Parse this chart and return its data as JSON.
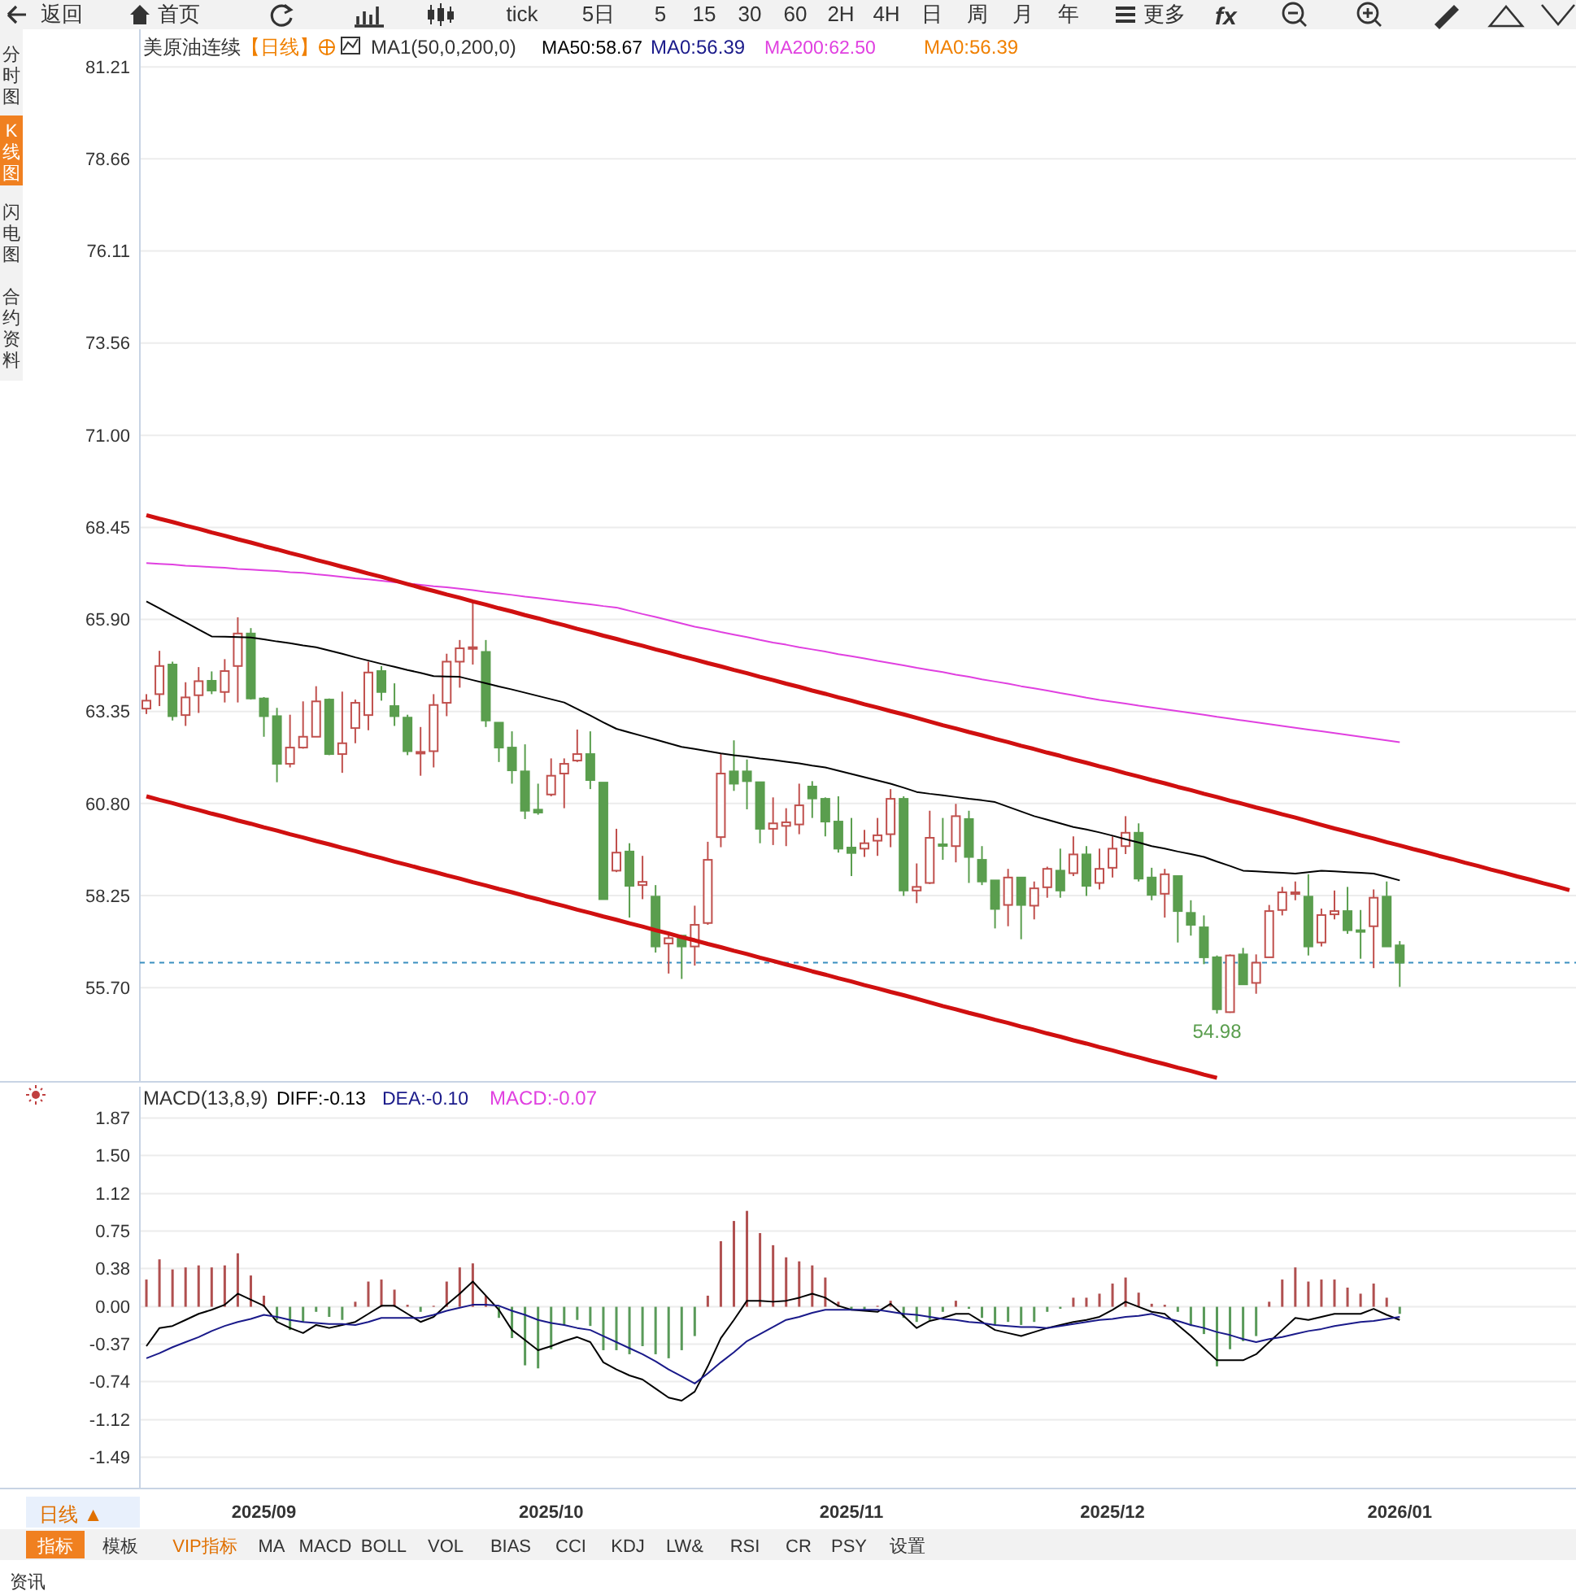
{
  "chart_data": [
    {
      "type": "candlestick",
      "title": "美原油连续",
      "subtitle": "【日线】",
      "annotations": [
        "返回",
        "首页",
        "tick",
        "5日",
        "5",
        "15",
        "30",
        "60",
        "2H",
        "4H",
        "日",
        "周",
        "月",
        "年",
        "更多",
        "分时图",
        "K线图",
        "闪电图",
        "合约资料",
        "MA1(50,0,200,0)",
        "MA0:56.39",
        "MA0:56.39",
        {
          "text": "54.98",
          "y": 54.98
        },
        "fx"
      ],
      "categories": [
        null,
        null,
        null,
        null,
        null,
        null,
        null,
        null,
        null,
        "2025/09",
        null,
        null,
        null,
        null,
        null,
        null,
        null,
        null,
        null,
        null,
        null,
        null,
        null,
        null,
        null,
        null,
        null,
        null,
        null,
        null,
        null,
        "2025/10",
        null,
        null,
        null,
        null,
        null,
        null,
        null,
        null,
        null,
        null,
        null,
        null,
        null,
        null,
        null,
        null,
        null,
        null,
        null,
        null,
        null,
        null,
        "2025/11",
        null,
        null,
        null,
        null,
        null,
        null,
        null,
        null,
        null,
        null,
        null,
        null,
        null,
        null,
        null,
        null,
        null,
        null,
        null,
        "2025/12",
        null,
        null,
        null,
        null,
        null,
        null,
        null,
        null,
        null,
        null,
        null,
        null,
        null,
        null,
        null,
        null,
        null,
        null,
        null,
        null,
        null,
        "2026/01",
        null,
        null,
        null,
        null,
        null,
        null,
        null,
        null,
        null,
        null,
        null,
        null,
        null
      ],
      "ohlc": [
        [
          63.43,
          63.83,
          63.28,
          63.65
        ],
        [
          63.83,
          65.03,
          63.5,
          64.61
        ],
        [
          64.65,
          64.73,
          63.1,
          63.22
        ],
        [
          63.25,
          64.16,
          62.95,
          63.74
        ],
        [
          63.8,
          64.58,
          63.31,
          64.19
        ],
        [
          64.2,
          64.46,
          63.83,
          63.93
        ],
        [
          63.89,
          64.8,
          63.6,
          64.47
        ],
        [
          64.61,
          65.96,
          63.6,
          65.51
        ],
        [
          65.51,
          65.66,
          63.68,
          63.71
        ],
        [
          63.71,
          63.75,
          62.65,
          63.22
        ],
        [
          63.22,
          63.45,
          61.39,
          61.9
        ],
        [
          61.9,
          63.26,
          61.8,
          62.35
        ],
        [
          62.35,
          63.63,
          62.32,
          62.65
        ],
        [
          62.65,
          64.05,
          62.65,
          63.63
        ],
        [
          63.68,
          63.71,
          62.14,
          62.17
        ],
        [
          62.17,
          63.9,
          61.65,
          62.47
        ],
        [
          62.89,
          63.68,
          62.47,
          63.59
        ],
        [
          63.25,
          64.73,
          62.83,
          64.43
        ],
        [
          64.47,
          64.61,
          63.65,
          63.89
        ],
        [
          63.5,
          64.13,
          62.95,
          63.22
        ],
        [
          63.18,
          63.26,
          62.14,
          62.25
        ],
        [
          62.2,
          62.92,
          61.57,
          62.23
        ],
        [
          62.25,
          63.83,
          61.8,
          63.53
        ],
        [
          63.59,
          64.95,
          63.22,
          64.73
        ],
        [
          64.73,
          65.33,
          64.01,
          65.1
        ],
        [
          65.1,
          66.38,
          64.65,
          65.13
        ],
        [
          65.0,
          65.33,
          62.92,
          63.1
        ],
        [
          63.04,
          63.04,
          61.95,
          62.35
        ],
        [
          62.35,
          62.8,
          61.35,
          61.72
        ],
        [
          61.69,
          62.44,
          60.37,
          60.6
        ],
        [
          60.63,
          61.35,
          60.49,
          60.55
        ],
        [
          61.05,
          62.05,
          61.0,
          61.57
        ],
        [
          61.63,
          62.05,
          60.67,
          61.9
        ],
        [
          61.99,
          62.85,
          61.95,
          62.17
        ],
        [
          62.17,
          62.8,
          61.2,
          61.45
        ],
        [
          61.38,
          61.38,
          58.15,
          58.15
        ],
        [
          58.94,
          60.1,
          58.9,
          59.44
        ],
        [
          59.47,
          59.7,
          57.64,
          58.52
        ],
        [
          58.54,
          59.35,
          58.15,
          58.63
        ],
        [
          58.22,
          58.54,
          56.67,
          56.84
        ],
        [
          56.92,
          57.22,
          56.09,
          57.07
        ],
        [
          57.14,
          57.14,
          55.94,
          56.84
        ],
        [
          56.84,
          57.97,
          56.31,
          57.44
        ],
        [
          57.49,
          59.74,
          57.44,
          59.24
        ],
        [
          59.87,
          62.17,
          59.59,
          61.63
        ],
        [
          61.69,
          62.55,
          61.15,
          61.35
        ],
        [
          61.69,
          62.02,
          60.64,
          61.42
        ],
        [
          61.39,
          61.39,
          59.7,
          60.1
        ],
        [
          60.1,
          60.97,
          59.65,
          60.25
        ],
        [
          60.18,
          60.67,
          59.62,
          60.28
        ],
        [
          60.22,
          61.35,
          59.95,
          60.75
        ],
        [
          61.27,
          61.42,
          60.4,
          60.94
        ],
        [
          60.93,
          60.97,
          59.89,
          60.3
        ],
        [
          60.3,
          61.0,
          59.44,
          59.55
        ],
        [
          59.58,
          60.4,
          58.79,
          59.43
        ],
        [
          59.55,
          60.07,
          59.32,
          59.7
        ],
        [
          59.77,
          60.4,
          59.35,
          59.92
        ],
        [
          59.95,
          61.2,
          59.59,
          60.93
        ],
        [
          60.93,
          61.0,
          58.24,
          58.39
        ],
        [
          58.39,
          59.14,
          58.04,
          58.49
        ],
        [
          58.6,
          60.6,
          58.57,
          59.85
        ],
        [
          59.67,
          60.4,
          59.24,
          59.64
        ],
        [
          59.62,
          60.79,
          59.17,
          60.45
        ],
        [
          60.37,
          60.6,
          58.6,
          59.32
        ],
        [
          59.24,
          59.62,
          58.54,
          58.64
        ],
        [
          58.67,
          58.67,
          57.34,
          57.88
        ],
        [
          57.99,
          58.99,
          57.4,
          58.75
        ],
        [
          58.75,
          58.75,
          57.04,
          57.99
        ],
        [
          57.97,
          58.64,
          57.59,
          58.45
        ],
        [
          58.48,
          59.05,
          58.19,
          58.99
        ],
        [
          58.94,
          59.55,
          58.19,
          58.39
        ],
        [
          58.87,
          59.89,
          58.79,
          59.39
        ],
        [
          59.39,
          59.62,
          58.24,
          58.52
        ],
        [
          58.6,
          59.55,
          58.42,
          58.99
        ],
        [
          59.02,
          59.89,
          58.75,
          59.55
        ],
        [
          59.62,
          60.45,
          59.4,
          59.99
        ],
        [
          59.99,
          60.25,
          58.64,
          58.72
        ],
        [
          58.75,
          59.02,
          58.12,
          58.27
        ],
        [
          58.3,
          58.99,
          57.64,
          58.84
        ],
        [
          58.79,
          58.79,
          56.95,
          57.82
        ],
        [
          57.77,
          58.12,
          57.14,
          57.44
        ],
        [
          57.37,
          57.7,
          56.35,
          56.54
        ],
        [
          56.54,
          56.59,
          54.98,
          55.1
        ],
        [
          55.02,
          56.62,
          55.0,
          56.59
        ],
        [
          56.62,
          56.8,
          55.79,
          55.79
        ],
        [
          55.83,
          56.62,
          55.53,
          56.39
        ],
        [
          56.54,
          57.99,
          56.54,
          57.82
        ],
        [
          57.85,
          58.49,
          57.7,
          58.34
        ],
        [
          58.3,
          58.64,
          58.12,
          58.34
        ],
        [
          58.22,
          58.84,
          56.59,
          56.84
        ],
        [
          56.95,
          57.89,
          56.84,
          57.71
        ],
        [
          57.73,
          58.39,
          57.59,
          57.82
        ],
        [
          57.82,
          58.49,
          57.19,
          57.29
        ],
        [
          57.29,
          57.85,
          56.5,
          57.26
        ],
        [
          57.4,
          58.42,
          56.24,
          58.19
        ],
        [
          58.22,
          58.64,
          56.84,
          56.84
        ],
        [
          56.87,
          56.99,
          55.72,
          56.39
        ],
        null,
        null,
        null,
        null,
        null,
        null,
        null,
        null,
        null,
        null,
        null,
        null,
        null
      ],
      "colors": [
        "#c0504d",
        "#c0504d",
        "#5a9e4e",
        "#c0504d",
        "#c0504d",
        "#5a9e4e",
        "#c0504d",
        "#c0504d",
        "#5a9e4e",
        "#5a9e4e",
        "#5a9e4e",
        "#c0504d",
        "#c0504d",
        "#c0504d",
        "#5a9e4e",
        "#c0504d",
        "#c0504d",
        "#c0504d",
        "#5a9e4e",
        "#5a9e4e",
        "#5a9e4e",
        "#c0504d",
        "#c0504d",
        "#c0504d",
        "#c0504d",
        "#c0504d",
        "#5a9e4e",
        "#5a9e4e",
        "#5a9e4e",
        "#5a9e4e",
        "#5a9e4e",
        "#c0504d",
        "#c0504d",
        "#c0504d",
        "#5a9e4e",
        "#5a9e4e",
        "#c0504d",
        "#5a9e4e",
        "#c0504d",
        "#5a9e4e",
        "#c0504d",
        "#5a9e4e",
        "#c0504d",
        "#c0504d",
        "#c0504d",
        "#5a9e4e",
        "#5a9e4e",
        "#5a9e4e",
        "#c0504d",
        "#c0504d",
        "#c0504d",
        "#5a9e4e",
        "#5a9e4e",
        "#5a9e4e",
        "#5a9e4e",
        "#c0504d",
        "#c0504d",
        "#c0504d",
        "#5a9e4e",
        "#c0504d",
        "#c0504d",
        "#5a9e4e",
        "#c0504d",
        "#5a9e4e",
        "#5a9e4e",
        "#5a9e4e",
        "#c0504d",
        "#5a9e4e",
        "#c0504d",
        "#c0504d",
        "#5a9e4e",
        "#c0504d",
        "#5a9e4e",
        "#c0504d",
        "#c0504d",
        "#c0504d",
        "#5a9e4e",
        "#5a9e4e",
        "#c0504d",
        "#5a9e4e",
        "#5a9e4e",
        "#5a9e4e",
        "#5a9e4e",
        "#c0504d",
        "#5a9e4e",
        "#c0504d",
        "#c0504d",
        "#c0504d",
        "#c0504d",
        "#5a9e4e",
        "#c0504d",
        "#c0504d",
        "#5a9e4e",
        "#5a9e4e",
        "#c0504d",
        "#5a9e4e",
        "#5a9e4e",
        null,
        null,
        null,
        null,
        null,
        null,
        null,
        null,
        null,
        null,
        null,
        null,
        null
      ],
      "series": [
        {
          "name": "MA50:58.67",
          "type": "line",
          "color": "#000000",
          "values": [
            66.4,
            66.21,
            66.01,
            65.82,
            65.62,
            65.43,
            65.42,
            65.41,
            65.4,
            65.35,
            65.29,
            65.24,
            65.18,
            65.13,
            65.04,
            64.95,
            64.85,
            64.76,
            64.67,
            64.59,
            64.5,
            64.42,
            64.33,
            64.32,
            64.31,
            64.22,
            64.13,
            64.04,
            63.96,
            63.87,
            63.78,
            63.69,
            63.6,
            63.42,
            63.24,
            63.05,
            62.87,
            62.77,
            62.67,
            62.57,
            62.47,
            62.37,
            62.31,
            62.25,
            62.19,
            62.14,
            62.1,
            62.05,
            62.01,
            61.96,
            61.91,
            61.85,
            61.8,
            61.71,
            61.62,
            61.53,
            61.44,
            61.35,
            61.24,
            61.12,
            61.07,
            61.03,
            60.98,
            60.93,
            60.89,
            60.84,
            60.71,
            60.58,
            60.45,
            60.35,
            60.25,
            60.15,
            60.08,
            60.0,
            59.91,
            59.81,
            59.72,
            59.62,
            59.55,
            59.47,
            59.4,
            59.32,
            59.19,
            59.07,
            58.94,
            58.92,
            58.9,
            58.88,
            58.86,
            58.9,
            58.94,
            58.92,
            58.9,
            58.88,
            58.86,
            58.77,
            58.67,
            null,
            null,
            null,
            null,
            null,
            null,
            null,
            null,
            null,
            null,
            null,
            null,
            null
          ]
        },
        {
          "name": "MA200:62.50",
          "type": "line",
          "color": "#e040e0",
          "values": [
            67.46,
            67.44,
            67.42,
            67.39,
            67.37,
            67.35,
            67.33,
            67.3,
            67.28,
            67.26,
            67.24,
            67.21,
            67.19,
            67.15,
            67.12,
            67.08,
            67.04,
            67.01,
            66.97,
            66.93,
            66.9,
            66.86,
            66.82,
            66.79,
            66.75,
            66.71,
            66.66,
            66.62,
            66.58,
            66.53,
            66.49,
            66.45,
            66.4,
            66.36,
            66.32,
            66.27,
            66.23,
            66.14,
            66.05,
            65.97,
            65.88,
            65.79,
            65.7,
            65.63,
            65.55,
            65.48,
            65.41,
            65.33,
            65.26,
            65.2,
            65.13,
            65.07,
            65.01,
            64.94,
            64.88,
            64.82,
            64.75,
            64.69,
            64.63,
            64.56,
            64.5,
            64.44,
            64.37,
            64.31,
            64.24,
            64.18,
            64.12,
            64.05,
            63.99,
            63.93,
            63.86,
            63.8,
            63.73,
            63.67,
            63.62,
            63.57,
            63.51,
            63.46,
            63.41,
            63.36,
            63.31,
            63.26,
            63.2,
            63.15,
            63.1,
            63.05,
            63.0,
            62.95,
            62.9,
            62.85,
            62.8,
            62.75,
            62.7,
            62.65,
            62.6,
            62.55,
            62.5,
            null,
            null,
            null,
            null,
            null,
            null,
            null,
            null,
            null,
            null,
            null,
            null,
            null
          ]
        },
        {
          "type": "line",
          "color": "#d01010",
          "values": [
            68.79,
            68.69,
            68.6,
            68.5,
            68.41,
            68.31,
            68.22,
            68.12,
            68.03,
            67.93,
            67.84,
            67.74,
            67.65,
            67.55,
            67.46,
            67.36,
            67.27,
            67.17,
            67.08,
            66.98,
            66.88,
            66.78,
            66.69,
            66.59,
            66.5,
            66.4,
            66.31,
            66.21,
            66.12,
            66.02,
            65.93,
            65.83,
            65.74,
            65.64,
            65.55,
            65.45,
            65.36,
            65.26,
            65.17,
            65.07,
            64.98,
            64.88,
            64.79,
            64.69,
            64.6,
            64.5,
            64.41,
            64.31,
            64.22,
            64.12,
            64.03,
            63.93,
            63.84,
            63.74,
            63.65,
            63.55,
            63.46,
            63.36,
            63.27,
            63.17,
            63.07,
            62.97,
            62.88,
            62.78,
            62.69,
            62.59,
            62.5,
            62.4,
            62.31,
            62.21,
            62.12,
            62.02,
            61.93,
            61.83,
            61.74,
            61.64,
            61.55,
            61.45,
            61.36,
            61.26,
            61.17,
            61.07,
            60.98,
            60.88,
            60.79,
            60.69,
            60.6,
            60.5,
            60.41,
            60.31,
            60.21,
            60.11,
            60.02,
            59.92,
            59.83,
            59.73,
            59.64,
            59.54,
            59.45,
            59.35,
            59.26,
            59.16,
            59.07,
            58.97,
            58.88,
            58.78,
            58.69,
            58.59,
            58.5,
            58.4
          ]
        },
        {
          "type": "line",
          "color": "#d01010",
          "values": [
            61.0,
            60.9,
            60.81,
            60.71,
            60.62,
            60.52,
            60.43,
            60.33,
            60.24,
            60.14,
            60.05,
            59.95,
            59.86,
            59.76,
            59.67,
            59.57,
            59.48,
            59.38,
            59.29,
            59.19,
            59.1,
            59.0,
            58.91,
            58.81,
            58.72,
            58.62,
            58.53,
            58.43,
            58.34,
            58.24,
            58.15,
            58.05,
            57.96,
            57.86,
            57.77,
            57.67,
            57.58,
            57.48,
            57.39,
            57.29,
            57.2,
            57.1,
            57.01,
            56.91,
            56.82,
            56.72,
            56.63,
            56.53,
            56.44,
            56.34,
            56.25,
            56.15,
            56.06,
            55.96,
            55.87,
            55.77,
            55.68,
            55.58,
            55.49,
            55.39,
            55.29,
            55.19,
            55.1,
            55.0,
            54.91,
            54.81,
            54.72,
            54.62,
            54.53,
            54.43,
            54.34,
            54.24,
            54.15,
            54.05,
            53.96,
            53.86,
            53.77,
            53.67,
            53.58,
            53.48,
            53.39,
            53.29,
            53.2,
            null,
            null,
            null,
            null,
            null,
            null,
            null,
            null,
            null,
            null,
            null,
            null,
            null,
            null,
            null,
            null,
            null,
            null,
            null,
            null,
            null,
            null,
            null,
            null,
            null,
            null,
            null
          ]
        }
      ],
      "ref_lines": [
        {
          "axis": "y",
          "value": 56.39,
          "color": "#3a8fc0",
          "line_style": "dashed"
        }
      ],
      "ylim": [
        53.09,
        82.25
      ],
      "yticks": [
        {
          "value": 55.7,
          "label": "55.70"
        },
        58.25,
        {
          "value": 60.8,
          "label": "60.80"
        },
        63.35,
        {
          "value": 65.9,
          "label": "65.90"
        },
        68.45,
        {
          "value": 71,
          "label": "71.00"
        },
        73.56,
        76.11,
        78.66,
        81.21
      ],
      "grid": "y",
      "legend": "top left",
      "tick_labels": "y"
    },
    {
      "type": "bar",
      "title": "MACD(13,8,9)",
      "annotations": [
        "MACD:-0.07",
        "日线 ▲",
        "指标",
        "模板",
        "VIP指标",
        "MA",
        "MACD",
        "BOLL",
        "VOL",
        "BIAS",
        "CCI",
        "KDJ",
        "LW&",
        "RSI",
        "CR",
        "PSY",
        "设置",
        "资讯"
      ],
      "categories": [
        null,
        null,
        null,
        null,
        null,
        null,
        null,
        null,
        null,
        "2025/09",
        null,
        null,
        null,
        null,
        null,
        null,
        null,
        null,
        null,
        null,
        null,
        null,
        null,
        null,
        null,
        null,
        null,
        null,
        null,
        null,
        null,
        "2025/10",
        null,
        null,
        null,
        null,
        null,
        null,
        null,
        null,
        null,
        null,
        null,
        null,
        null,
        null,
        null,
        null,
        null,
        null,
        null,
        null,
        null,
        null,
        "2025/11",
        null,
        null,
        null,
        null,
        null,
        null,
        null,
        null,
        null,
        null,
        null,
        null,
        null,
        null,
        null,
        null,
        null,
        null,
        null,
        "2025/12",
        null,
        null,
        null,
        null,
        null,
        null,
        null,
        null,
        null,
        null,
        null,
        null,
        null,
        null,
        null,
        null,
        null,
        null,
        null,
        null,
        null,
        "2026/01",
        null,
        null,
        null,
        null,
        null,
        null,
        null,
        null,
        null,
        null,
        null,
        null,
        null
      ],
      "series": [
        {
          "type": "bar",
          "values": [
            0.27,
            0.47,
            0.37,
            0.39,
            0.41,
            0.39,
            0.41,
            0.53,
            0.31,
            0.11,
            -0.13,
            -0.23,
            -0.15,
            -0.05,
            -0.1,
            -0.13,
            0.05,
            0.25,
            0.27,
            0.17,
            0.02,
            -0.05,
            0.01,
            0.25,
            0.39,
            0.43,
            0.11,
            -0.11,
            -0.31,
            -0.58,
            -0.61,
            -0.42,
            -0.18,
            -0.13,
            -0.19,
            -0.43,
            -0.43,
            -0.47,
            -0.39,
            -0.47,
            -0.51,
            -0.43,
            -0.29,
            0.11,
            0.65,
            0.85,
            0.95,
            0.73,
            0.61,
            0.49,
            0.45,
            0.41,
            0.29,
            0.05,
            -0.02,
            -0.03,
            0.01,
            0.06,
            -0.11,
            -0.15,
            -0.13,
            -0.05,
            0.06,
            -0.02,
            -0.11,
            -0.18,
            -0.15,
            -0.18,
            -0.15,
            -0.05,
            -0.02,
            0.09,
            0.09,
            0.13,
            0.23,
            0.29,
            0.14,
            0.03,
            0.02,
            -0.05,
            -0.19,
            -0.27,
            -0.59,
            -0.42,
            -0.34,
            -0.29,
            0.05,
            0.27,
            0.39,
            0.25,
            0.27,
            0.27,
            0.19,
            0.13,
            0.23,
            0.09,
            -0.07,
            null,
            null,
            null,
            null,
            null,
            null,
            null,
            null,
            null,
            null,
            null,
            null,
            null
          ],
          "colors": [
            "#b05050",
            "#b05050",
            "#b05050",
            "#b05050",
            "#b05050",
            "#b05050",
            "#b05050",
            "#b05050",
            "#b05050",
            "#b05050",
            "#5a9a5a",
            "#5a9a5a",
            "#5a9a5a",
            "#5a9a5a",
            "#5a9a5a",
            "#5a9a5a",
            "#b05050",
            "#b05050",
            "#b05050",
            "#b05050",
            "#b05050",
            "#5a9a5a",
            "#b05050",
            "#b05050",
            "#b05050",
            "#b05050",
            "#b05050",
            "#5a9a5a",
            "#5a9a5a",
            "#5a9a5a",
            "#5a9a5a",
            "#5a9a5a",
            "#5a9a5a",
            "#5a9a5a",
            "#5a9a5a",
            "#5a9a5a",
            "#5a9a5a",
            "#5a9a5a",
            "#5a9a5a",
            "#5a9a5a",
            "#5a9a5a",
            "#5a9a5a",
            "#5a9a5a",
            "#b05050",
            "#b05050",
            "#b05050",
            "#b05050",
            "#b05050",
            "#b05050",
            "#b05050",
            "#b05050",
            "#b05050",
            "#b05050",
            "#b05050",
            "#5a9a5a",
            "#5a9a5a",
            "#b05050",
            "#b05050",
            "#5a9a5a",
            "#5a9a5a",
            "#5a9a5a",
            "#5a9a5a",
            "#b05050",
            "#5a9a5a",
            "#5a9a5a",
            "#5a9a5a",
            "#5a9a5a",
            "#5a9a5a",
            "#5a9a5a",
            "#5a9a5a",
            "#5a9a5a",
            "#b05050",
            "#b05050",
            "#b05050",
            "#b05050",
            "#b05050",
            "#b05050",
            "#b05050",
            "#b05050",
            "#5a9a5a",
            "#5a9a5a",
            "#5a9a5a",
            "#5a9a5a",
            "#5a9a5a",
            "#5a9a5a",
            "#5a9a5a",
            "#b05050",
            "#b05050",
            "#b05050",
            "#b05050",
            "#b05050",
            "#b05050",
            "#b05050",
            "#b05050",
            "#b05050",
            "#b05050",
            "#5a9a5a",
            null,
            null,
            null,
            null,
            null,
            null,
            null,
            null,
            null,
            null,
            null,
            null,
            null
          ]
        },
        {
          "name": "DIFF:-0.13",
          "type": "line",
          "color": "#000000",
          "values": [
            -0.39,
            -0.21,
            -0.19,
            -0.13,
            -0.07,
            -0.03,
            0.02,
            0.13,
            0.07,
            0.01,
            -0.15,
            -0.21,
            -0.26,
            -0.18,
            -0.21,
            -0.18,
            -0.15,
            -0.07,
            0.01,
            0.01,
            -0.07,
            -0.15,
            -0.1,
            0.02,
            0.13,
            0.25,
            0.11,
            -0.03,
            -0.23,
            -0.33,
            -0.43,
            -0.39,
            -0.34,
            -0.3,
            -0.35,
            -0.55,
            -0.62,
            -0.68,
            -0.72,
            -0.81,
            -0.9,
            -0.93,
            -0.84,
            -0.59,
            -0.31,
            -0.13,
            0.06,
            0.06,
            0.05,
            0.06,
            0.09,
            0.13,
            0.09,
            0.01,
            -0.03,
            -0.04,
            -0.05,
            0.03,
            -0.09,
            -0.21,
            -0.14,
            -0.11,
            -0.07,
            -0.07,
            -0.15,
            -0.23,
            -0.26,
            -0.29,
            -0.25,
            -0.21,
            -0.18,
            -0.15,
            -0.13,
            -0.1,
            -0.03,
            0.05,
            0.0,
            -0.05,
            -0.07,
            -0.18,
            -0.29,
            -0.41,
            -0.53,
            -0.53,
            -0.53,
            -0.47,
            -0.35,
            -0.23,
            -0.11,
            -0.13,
            -0.1,
            -0.07,
            -0.07,
            -0.07,
            -0.02,
            -0.08,
            -0.13,
            null,
            null,
            null,
            null,
            null,
            null,
            null,
            null,
            null,
            null,
            null,
            null,
            null
          ]
        },
        {
          "name": "DEA:-0.10",
          "type": "line",
          "color": "#1a1a8a",
          "values": [
            -0.51,
            -0.46,
            -0.4,
            -0.35,
            -0.3,
            -0.24,
            -0.19,
            -0.15,
            -0.12,
            -0.08,
            -0.1,
            -0.13,
            -0.15,
            -0.16,
            -0.17,
            -0.17,
            -0.18,
            -0.15,
            -0.11,
            -0.11,
            -0.11,
            -0.11,
            -0.08,
            -0.04,
            -0.01,
            0.02,
            0.02,
            0.01,
            -0.04,
            -0.08,
            -0.13,
            -0.16,
            -0.18,
            -0.21,
            -0.23,
            -0.29,
            -0.35,
            -0.41,
            -0.47,
            -0.54,
            -0.62,
            -0.69,
            -0.76,
            -0.66,
            -0.55,
            -0.45,
            -0.34,
            -0.27,
            -0.2,
            -0.13,
            -0.1,
            -0.06,
            -0.03,
            -0.03,
            -0.03,
            -0.03,
            -0.03,
            -0.05,
            -0.07,
            -0.08,
            -0.1,
            -0.12,
            -0.13,
            -0.15,
            -0.16,
            -0.18,
            -0.19,
            -0.2,
            -0.2,
            -0.21,
            -0.19,
            -0.17,
            -0.15,
            -0.13,
            -0.12,
            -0.1,
            -0.09,
            -0.07,
            -0.11,
            -0.14,
            -0.18,
            -0.21,
            -0.25,
            -0.28,
            -0.32,
            -0.35,
            -0.32,
            -0.3,
            -0.27,
            -0.24,
            -0.22,
            -0.19,
            -0.17,
            -0.15,
            -0.14,
            -0.12,
            -0.1,
            null,
            null,
            null,
            null,
            null,
            null,
            null,
            null,
            null,
            null,
            null,
            null,
            null
          ]
        }
      ],
      "ylim": [
        -1.8,
        2.18
      ],
      "yticks": [
        1.87,
        {
          "value": 1.5,
          "label": "1.50"
        },
        1.12,
        0.75,
        0.38,
        {
          "value": 0,
          "label": "0.00"
        },
        -0.37,
        -0.74,
        -1.12,
        -1.49
      ],
      "grid": "y",
      "legend": "top left"
    }
  ]
}
